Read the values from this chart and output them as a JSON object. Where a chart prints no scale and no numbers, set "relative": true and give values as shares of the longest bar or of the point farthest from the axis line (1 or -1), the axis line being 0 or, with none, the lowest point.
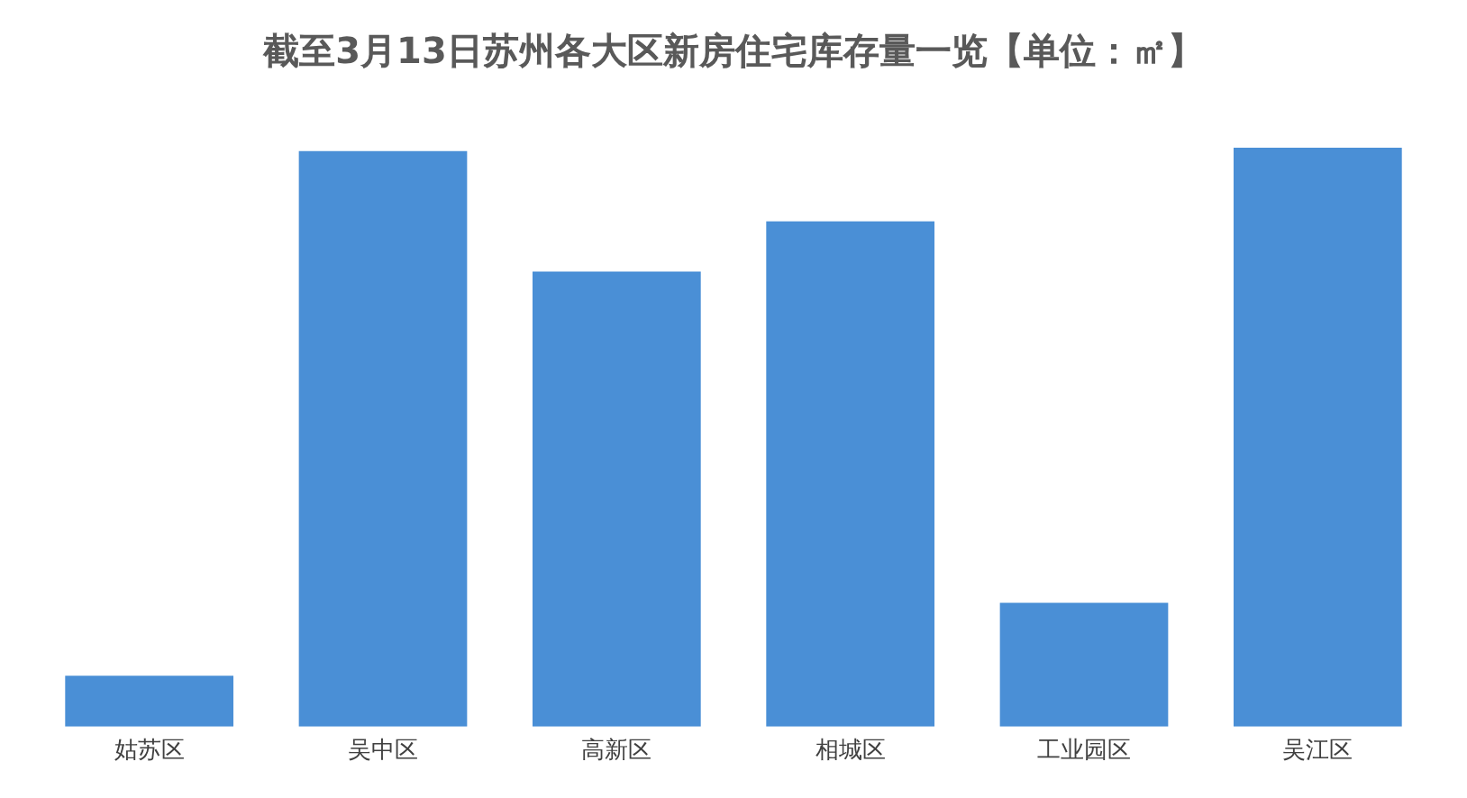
{
  "chart_data": {
    "type": "bar",
    "title": "截至3月13日苏州各大区新房住宅库存量一览【单位：㎡】",
    "relative": true,
    "categories": [
      "姑苏区",
      "吴中区",
      "高新区",
      "相城区",
      "工业园区",
      "吴江区"
    ],
    "values": [
      0.088,
      0.994,
      0.786,
      0.873,
      0.214,
      1
    ],
    "color": "#4a8fd6",
    "grid": false,
    "legend": false
  }
}
